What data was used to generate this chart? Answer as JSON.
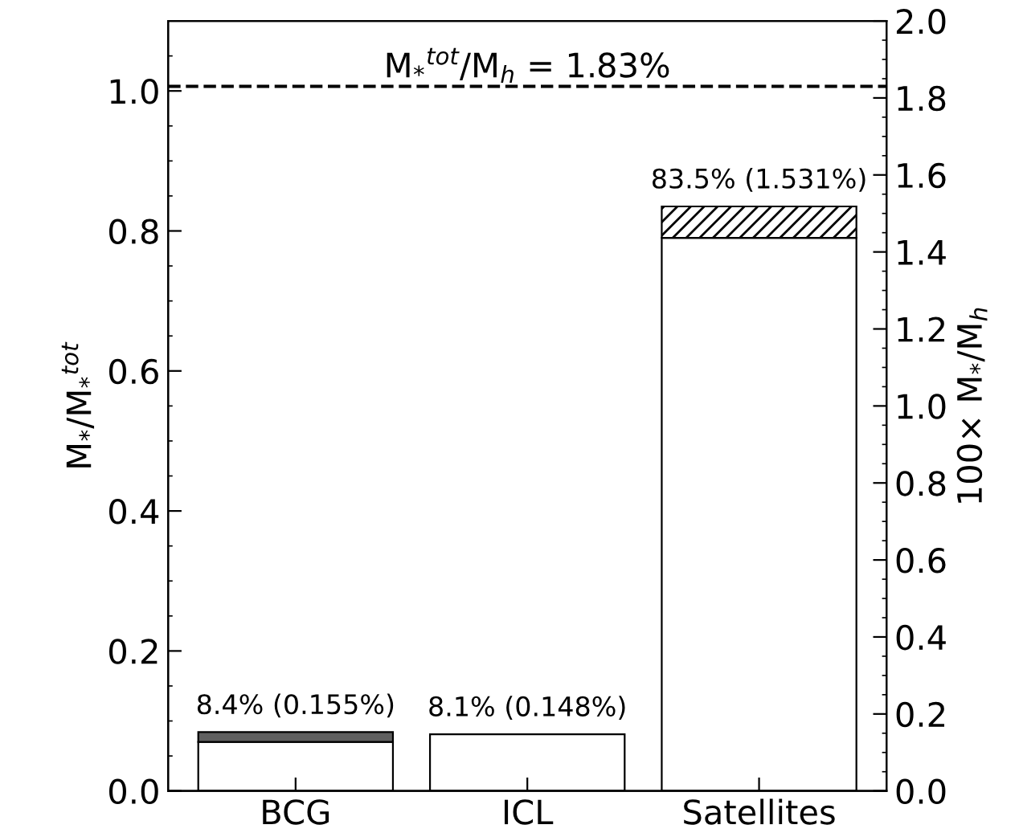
{
  "chart_data": {
    "type": "bar",
    "stacked": true,
    "categories": [
      "BCG",
      "ICL",
      "Satellites"
    ],
    "series": [
      {
        "color": "#ffffff",
        "values": [
          0.07,
          0.081,
          0.79
        ]
      },
      {
        "color": "#606060",
        "values": [
          0.014,
          null,
          null
        ]
      },
      {
        "color": "#000000",
        "values": [
          null,
          null,
          0.045
        ]
      }
    ],
    "totals": [
      "8.4% (0.155%)",
      "8.1% (0.148%)",
      "83.5% (1.531%)"
    ],
    "ylabel": "M$_{*}$/M$_{*}$$^{tot}$",
    "y2label": "100× M$_{*}$/M$_{h}$",
    "ylim": [
      0,
      1.1
    ],
    "yticks": [
      {
        "value": 0,
        "label": "0.0"
      },
      0.2,
      0.4,
      0.6,
      0.8,
      {
        "value": 1,
        "label": "1.0"
      }
    ],
    "y2lim": [
      0,
      2.0
    ],
    "y2ticks": [
      {
        "value": 0,
        "label": "0.0"
      },
      0.2,
      0.4,
      0.6,
      0.8,
      {
        "value": 1,
        "label": "1.0"
      },
      1.2,
      1.4,
      1.6,
      1.8,
      {
        "value": 2,
        "label": "2.0"
      }
    ],
    "ref_lines": [
      {
        "axis": "y2",
        "value": 1.83,
        "label": "M$_{*}$$^{tot}$/M$_{h}$ = 1.83%",
        "color": "#000000",
        "line_style": "dashed"
      }
    ],
    "grid": false,
    "legend": false
  }
}
